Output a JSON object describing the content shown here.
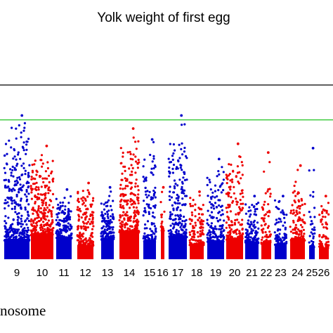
{
  "chart_data": {
    "type": "scatter",
    "title": "Yolk weight of first egg",
    "xlabel": "nosome",
    "ylabel": "",
    "colors": {
      "odd": "#0000cc",
      "even": "#ee0000",
      "threshold_upper": "#000000",
      "threshold_lower": "#22c322"
    },
    "chromosomes": [
      {
        "label": "9",
        "max": 6.6,
        "base": 1.7,
        "density": 1.0,
        "color": "blue"
      },
      {
        "label": "10",
        "max": 5.2,
        "base": 2.2,
        "density": 1.0,
        "color": "red"
      },
      {
        "label": "11",
        "max": 3.2,
        "base": 1.9,
        "density": 0.8,
        "color": "blue"
      },
      {
        "label": "12",
        "max": 3.5,
        "base": 1.2,
        "density": 0.8,
        "color": "red"
      },
      {
        "label": "13",
        "max": 3.3,
        "base": 1.8,
        "density": 0.8,
        "color": "blue"
      },
      {
        "label": "14",
        "max": 6.0,
        "base": 2.4,
        "density": 1.0,
        "color": "red"
      },
      {
        "label": "15",
        "max": 5.5,
        "base": 1.6,
        "density": 0.8,
        "color": "blue"
      },
      {
        "label": "16",
        "max": 3.3,
        "base": 2.6,
        "density": 0.4,
        "color": "red"
      },
      {
        "label": "17",
        "max": 6.6,
        "base": 2.0,
        "density": 0.9,
        "color": "blue"
      },
      {
        "label": "18",
        "max": 3.1,
        "base": 1.3,
        "density": 0.7,
        "color": "red"
      },
      {
        "label": "19",
        "max": 4.6,
        "base": 1.6,
        "density": 0.8,
        "color": "blue"
      },
      {
        "label": "20",
        "max": 5.3,
        "base": 1.8,
        "density": 0.8,
        "color": "red"
      },
      {
        "label": "21",
        "max": 2.9,
        "base": 1.5,
        "density": 0.7,
        "color": "blue"
      },
      {
        "label": "22",
        "max": 4.9,
        "base": 1.4,
        "density": 0.6,
        "color": "red"
      },
      {
        "label": "23",
        "max": 2.9,
        "base": 1.3,
        "density": 0.6,
        "color": "blue"
      },
      {
        "label": "24",
        "max": 4.3,
        "base": 1.7,
        "density": 0.6,
        "color": "red"
      },
      {
        "label": "25",
        "max": 5.1,
        "base": 1.1,
        "density": 0.5,
        "color": "blue"
      },
      {
        "label": "26",
        "max": 2.9,
        "base": 1.0,
        "density": 0.5,
        "color": "red"
      }
    ],
    "threshold_upper": 8.0,
    "threshold_lower": 6.4,
    "ylim": [
      0,
      11
    ],
    "grid": false,
    "legend": "none"
  }
}
